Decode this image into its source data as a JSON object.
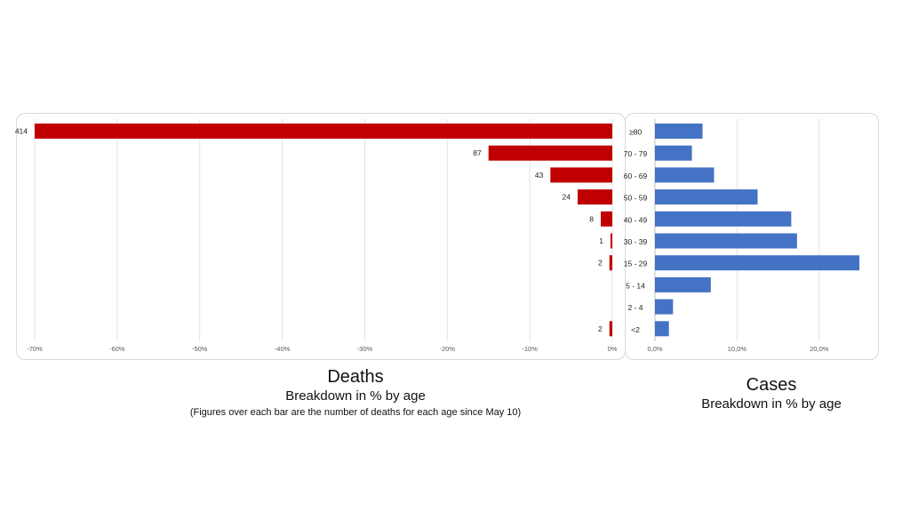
{
  "chart_data": [
    {
      "type": "bar",
      "orientation": "horizontal",
      "categories": [
        "≥80",
        "70 - 79",
        "60 - 69",
        "50 - 59",
        "40 - 49",
        "30 - 39",
        "15 - 29",
        "5 - 14",
        "2 - 4",
        "<2"
      ],
      "values": [
        -70,
        -15,
        -7.5,
        -4.2,
        -1.4,
        -0.2,
        -0.35,
        0,
        0,
        -0.35
      ],
      "data_labels": [
        "414",
        "87",
        "43",
        "24",
        "8",
        "1",
        "2",
        "",
        "",
        "2"
      ],
      "xlim": [
        -70,
        0
      ],
      "x_ticks": [
        -70,
        -60,
        -50,
        -40,
        -30,
        -20,
        -10,
        0
      ],
      "x_tick_labels": [
        "-70%",
        "-60%",
        "-50%",
        "-40%",
        "-30%",
        "-20%",
        "-10%",
        "0%"
      ],
      "grid": "vertical",
      "color": "#c00000",
      "title": "Deaths",
      "subtitle": "Breakdown in % by age",
      "note": "(Figures over each bar are the number of deaths for each age since May 10)"
    },
    {
      "type": "bar",
      "orientation": "horizontal",
      "categories": [
        "≥80",
        "70 - 79",
        "60 - 69",
        "50 - 59",
        "40 - 49",
        "30 - 39",
        "15 - 29",
        "5 - 14",
        "2 - 4",
        "<2"
      ],
      "values": [
        5.8,
        4.5,
        7.2,
        12.5,
        16.6,
        17.3,
        24.9,
        6.8,
        2.2,
        1.7
      ],
      "xlim": [
        0,
        25
      ],
      "x_ticks": [
        0,
        10,
        20
      ],
      "x_tick_labels": [
        "0,0%",
        "10,0%",
        "20,0%"
      ],
      "grid": "vertical",
      "color": "#4472c4",
      "title": "Cases",
      "subtitle": "Breakdown in % by age"
    }
  ]
}
